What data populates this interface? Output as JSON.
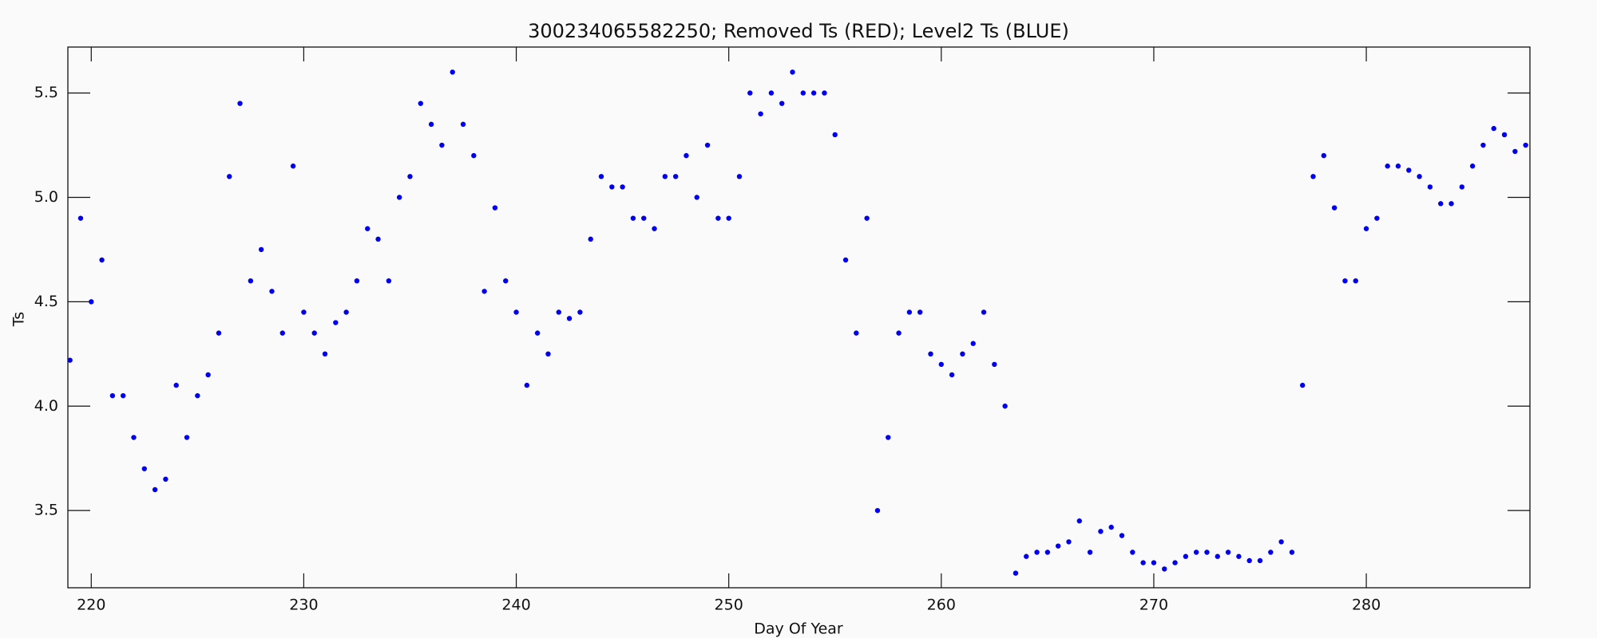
{
  "chart_data": {
    "type": "scatter",
    "title": "300234065582250; Removed Ts (RED); Level2 Ts (BLUE)",
    "xlabel": "Day Of Year",
    "ylabel": "Ts",
    "color": "#0000ee",
    "xlim": [
      218.9,
      287.7
    ],
    "ylim": [
      3.13,
      5.72
    ],
    "xticks": [
      220,
      230,
      240,
      250,
      260,
      270,
      280
    ],
    "yticks": [
      3.5,
      {
        "value": 4,
        "label": "4.0"
      },
      4.5,
      {
        "value": 5,
        "label": "5.0"
      },
      5.5
    ],
    "x": [
      219,
      219.5,
      220,
      220.5,
      221,
      221.5,
      222,
      222.5,
      223,
      223.5,
      224,
      224.5,
      225,
      225.5,
      226,
      226.5,
      227,
      227.5,
      228,
      228.5,
      229,
      229.5,
      230,
      230.5,
      231,
      231.5,
      232,
      232.5,
      233,
      233.5,
      234,
      234.5,
      235,
      235.5,
      236,
      236.5,
      237,
      237.5,
      238,
      238.5,
      239,
      239.5,
      240,
      240.5,
      241,
      241.5,
      242,
      242.5,
      243,
      243.5,
      244,
      244.5,
      245,
      245.5,
      246,
      246.5,
      247,
      247.5,
      248,
      248.5,
      249,
      249.5,
      250,
      250.5,
      251,
      251.5,
      252,
      252.5,
      253,
      253.5,
      254,
      254.5,
      255,
      255.5,
      256,
      256.5,
      257,
      257.5,
      258,
      258.5,
      259,
      259.5,
      260,
      260.5,
      261,
      261.5,
      262,
      262.5,
      263,
      263.5,
      264,
      264.5,
      265,
      265.5,
      266,
      266.5,
      267,
      267.5,
      268,
      268.5,
      269,
      269.5,
      270,
      270.5,
      271,
      271.5,
      272,
      272.5,
      273,
      273.5,
      274,
      274.5,
      275,
      275.5,
      276,
      276.5,
      277,
      277.5,
      278,
      278.5,
      279,
      279.5,
      280,
      280.5,
      281,
      281.5,
      282,
      282.5,
      283,
      283.5,
      284,
      284.5,
      285,
      285.5,
      286,
      286.5,
      287,
      287.5
    ],
    "values": [
      4.22,
      4.9,
      4.5,
      4.7,
      4.05,
      4.05,
      3.85,
      3.7,
      3.6,
      3.65,
      4.1,
      3.85,
      4.05,
      4.15,
      4.35,
      5.1,
      5.45,
      4.6,
      4.75,
      4.55,
      4.35,
      5.15,
      4.45,
      4.35,
      4.25,
      4.4,
      4.45,
      4.6,
      4.85,
      4.8,
      4.6,
      5.0,
      5.1,
      5.45,
      5.35,
      5.25,
      5.6,
      5.35,
      5.2,
      4.55,
      4.95,
      4.6,
      4.45,
      4.1,
      4.35,
      4.25,
      4.45,
      4.42,
      4.45,
      4.8,
      5.1,
      5.05,
      5.05,
      4.9,
      4.9,
      4.85,
      5.1,
      5.1,
      5.2,
      5.0,
      5.25,
      4.9,
      4.9,
      5.1,
      5.5,
      5.4,
      5.5,
      5.45,
      5.6,
      5.5,
      5.5,
      5.5,
      5.3,
      4.7,
      4.35,
      4.9,
      3.5,
      3.85,
      4.35,
      4.45,
      4.45,
      4.25,
      4.2,
      4.15,
      4.25,
      4.3,
      4.45,
      4.2,
      4.0,
      3.2,
      3.28,
      3.3,
      3.3,
      3.33,
      3.35,
      3.45,
      3.3,
      3.4,
      3.42,
      3.38,
      3.3,
      3.25,
      3.25,
      3.22,
      3.25,
      3.28,
      3.3,
      3.3,
      3.28,
      3.3,
      3.28,
      3.26,
      3.26,
      3.3,
      3.35,
      3.3,
      4.1,
      5.1,
      5.2,
      4.95,
      4.6,
      4.6,
      4.85,
      4.9,
      5.15,
      5.15,
      5.13,
      5.1,
      5.05,
      4.97,
      4.97,
      5.05,
      5.15,
      5.25,
      5.33,
      5.3,
      5.22,
      5.25
    ]
  }
}
